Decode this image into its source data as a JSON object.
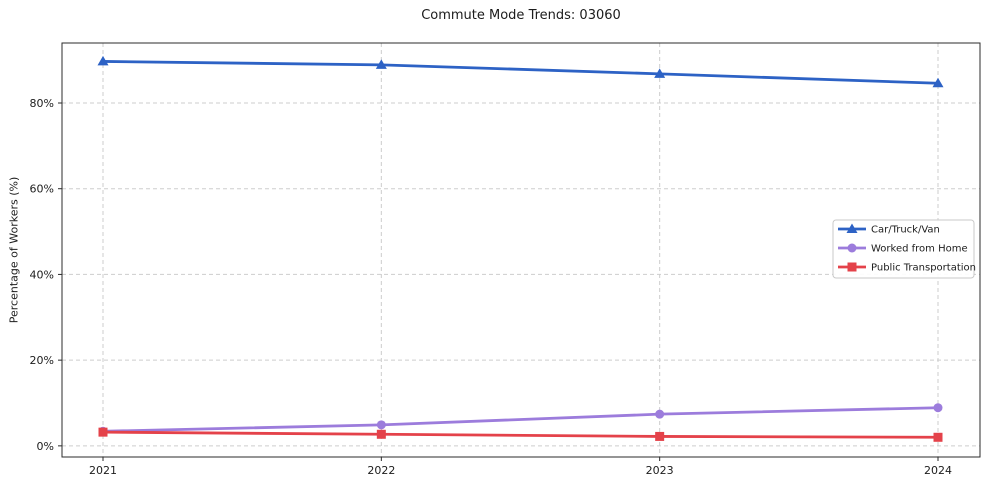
{
  "chart_data": {
    "type": "line",
    "title": "Commute Mode Trends: 03060",
    "xlabel": "",
    "ylabel": "Percentage of Workers (%)",
    "categories": [
      "2021",
      "2022",
      "2023",
      "2024"
    ],
    "y_ticks": [
      0,
      20,
      40,
      60,
      80
    ],
    "y_tick_labels": [
      "0%",
      "20%",
      "40%",
      "60%",
      "80%"
    ],
    "ylim": [
      -2.6,
      94
    ],
    "grid": true,
    "grid_style": "dashed",
    "legend_position": "center-right",
    "series": [
      {
        "name": "Car/Truck/Van",
        "marker": "triangle",
        "color": "#2d62c5",
        "values": [
          89.7,
          88.9,
          86.8,
          84.6
        ]
      },
      {
        "name": "Worked from Home",
        "marker": "circle",
        "color": "#9c7cdc",
        "values": [
          3.4,
          4.9,
          7.4,
          8.9
        ]
      },
      {
        "name": "Public Transportation",
        "marker": "square",
        "color": "#e4424a",
        "values": [
          3.2,
          2.7,
          2.2,
          2.0
        ]
      }
    ]
  }
}
